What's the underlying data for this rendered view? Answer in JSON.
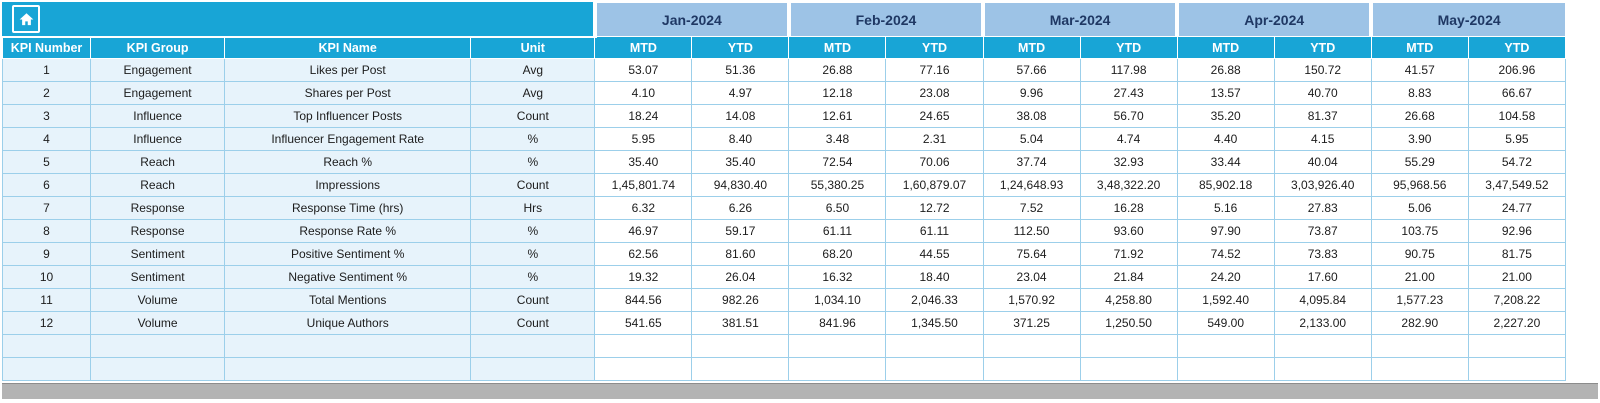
{
  "colors": {
    "header_teal": "#18A5D6",
    "month_header_blue": "#9DC3E6",
    "month_text_navy": "#1F3864",
    "left_column_tint": "#E7F3FB",
    "grid_border": "#9CCFEA",
    "bottom_strip_gray": "#B3B3B3"
  },
  "corner": {
    "icon": "home"
  },
  "table": {
    "months": [
      "Jan-2024",
      "Feb-2024",
      "Mar-2024",
      "Apr-2024",
      "May-2024"
    ],
    "sub_headers": [
      "MTD",
      "YTD"
    ],
    "kpi_headers": [
      "KPI Number",
      "KPI Group",
      "KPI Name",
      "Unit"
    ],
    "empty_row_count": 2,
    "rows": [
      {
        "number": "1",
        "group": "Engagement",
        "name": "Likes per Post",
        "unit": "Avg",
        "values": [
          "53.07",
          "51.36",
          "26.88",
          "77.16",
          "57.66",
          "117.98",
          "26.88",
          "150.72",
          "41.57",
          "206.96"
        ]
      },
      {
        "number": "2",
        "group": "Engagement",
        "name": "Shares per Post",
        "unit": "Avg",
        "values": [
          "4.10",
          "4.97",
          "12.18",
          "23.08",
          "9.96",
          "27.43",
          "13.57",
          "40.70",
          "8.83",
          "66.67"
        ]
      },
      {
        "number": "3",
        "group": "Influence",
        "name": "Top Influencer Posts",
        "unit": "Count",
        "values": [
          "18.24",
          "14.08",
          "12.61",
          "24.65",
          "38.08",
          "56.70",
          "35.20",
          "81.37",
          "26.68",
          "104.58"
        ]
      },
      {
        "number": "4",
        "group": "Influence",
        "name": "Influencer Engagement Rate",
        "unit": "%",
        "values": [
          "5.95",
          "8.40",
          "3.48",
          "2.31",
          "5.04",
          "4.74",
          "4.40",
          "4.15",
          "3.90",
          "5.95"
        ]
      },
      {
        "number": "5",
        "group": "Reach",
        "name": "Reach %",
        "unit": "%",
        "values": [
          "35.40",
          "35.40",
          "72.54",
          "70.06",
          "37.74",
          "32.93",
          "33.44",
          "40.04",
          "55.29",
          "54.72"
        ]
      },
      {
        "number": "6",
        "group": "Reach",
        "name": "Impressions",
        "unit": "Count",
        "values": [
          "1,45,801.74",
          "94,830.40",
          "55,380.25",
          "1,60,879.07",
          "1,24,648.93",
          "3,48,322.20",
          "85,902.18",
          "3,03,926.40",
          "95,968.56",
          "3,47,549.52"
        ]
      },
      {
        "number": "7",
        "group": "Response",
        "name": "Response Time (hrs)",
        "unit": "Hrs",
        "values": [
          "6.32",
          "6.26",
          "6.50",
          "12.72",
          "7.52",
          "16.28",
          "5.16",
          "27.83",
          "5.06",
          "24.77"
        ]
      },
      {
        "number": "8",
        "group": "Response",
        "name": "Response Rate %",
        "unit": "%",
        "values": [
          "46.97",
          "59.17",
          "61.11",
          "61.11",
          "112.50",
          "93.60",
          "97.90",
          "73.87",
          "103.75",
          "92.96"
        ]
      },
      {
        "number": "9",
        "group": "Sentiment",
        "name": "Positive Sentiment %",
        "unit": "%",
        "values": [
          "62.56",
          "81.60",
          "68.20",
          "44.55",
          "75.64",
          "71.92",
          "74.52",
          "73.83",
          "90.75",
          "81.75"
        ]
      },
      {
        "number": "10",
        "group": "Sentiment",
        "name": "Negative Sentiment %",
        "unit": "%",
        "values": [
          "19.32",
          "26.04",
          "16.32",
          "18.40",
          "23.04",
          "21.84",
          "24.20",
          "17.60",
          "21.00",
          "21.00"
        ]
      },
      {
        "number": "11",
        "group": "Volume",
        "name": "Total Mentions",
        "unit": "Count",
        "values": [
          "844.56",
          "982.26",
          "1,034.10",
          "2,046.33",
          "1,570.92",
          "4,258.80",
          "1,592.40",
          "4,095.84",
          "1,577.23",
          "7,208.22"
        ]
      },
      {
        "number": "12",
        "group": "Volume",
        "name": "Unique Authors",
        "unit": "Count",
        "values": [
          "541.65",
          "381.51",
          "841.96",
          "1,345.50",
          "371.25",
          "1,250.50",
          "549.00",
          "2,133.00",
          "282.90",
          "2,227.20"
        ]
      }
    ]
  }
}
